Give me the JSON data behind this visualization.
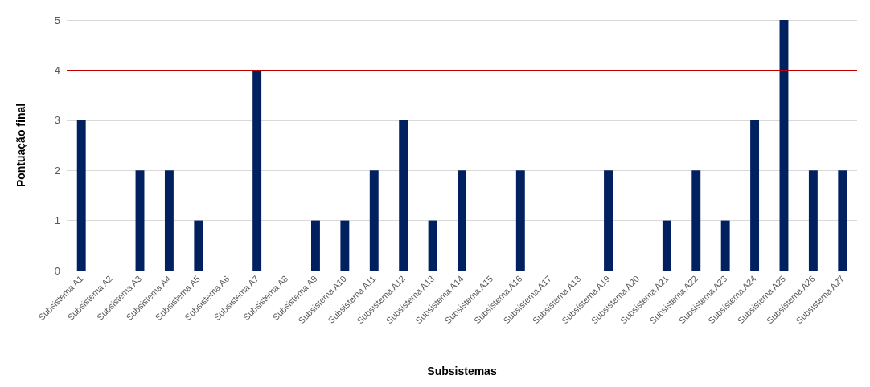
{
  "chart_data": {
    "type": "bar",
    "xlabel": "Subsistemas",
    "ylabel": "Pontuação final",
    "categories": [
      "Subsistema A1",
      "Subsistema A2",
      "Subsistema A3",
      "Subsistema A4",
      "Subsistema A5",
      "Subsistema A6",
      "Subsistema A7",
      "Subsistema A8",
      "Subsistema A9",
      "Subsistema A10",
      "Subsistema A11",
      "Subsistema A12",
      "Subsistema A13",
      "Subsistema A14",
      "Subsistema A15",
      "Subsistema A16",
      "Subsistema A17",
      "Subsistema A18",
      "Subsistema A19",
      "Subsistema A20",
      "Subsistema A21",
      "Subsistema A22",
      "Subsistema A23",
      "Subsistema A24",
      "Subsistema A25",
      "Subsistema A26",
      "Subsistema A27"
    ],
    "values": [
      3,
      0,
      2,
      2,
      1,
      0,
      4,
      0,
      1,
      1,
      2,
      3,
      1,
      2,
      0,
      2,
      0,
      0,
      2,
      0,
      1,
      2,
      1,
      3,
      5,
      2,
      2
    ],
    "color": "#002060",
    "ylim": [
      0,
      5
    ],
    "yticks": [
      0,
      1,
      2,
      3,
      4,
      5
    ],
    "grid": "y",
    "ref_lines": [
      {
        "axis": "y",
        "value": 4,
        "color": "#c00000"
      }
    ]
  }
}
